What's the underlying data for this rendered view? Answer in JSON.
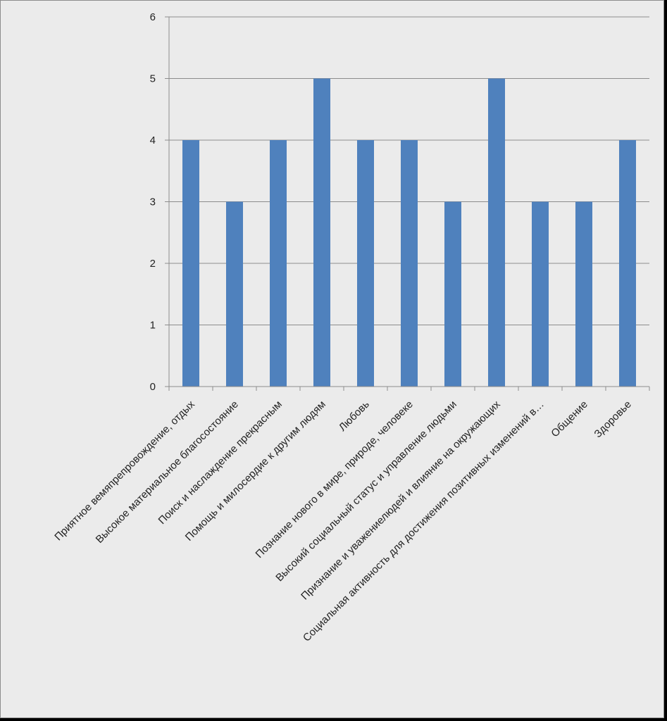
{
  "chart_data": {
    "type": "bar",
    "title": "",
    "xlabel": "",
    "ylabel": "",
    "ylim": [
      0,
      6
    ],
    "yticks": [
      "0",
      "1",
      "2",
      "3",
      "4",
      "5",
      "6"
    ],
    "grid": true,
    "legend": "none",
    "categories": [
      "Приятное вемяпрепровождение, отдых",
      "Высокое материальное благосостояние",
      "Поиск и наслаждение прекрасным",
      "Помощь и милосердие к другим людям",
      "Любовь",
      "Познание нового в мире, природе, человеке",
      "Высокий социальный статус и управление людьми",
      "Признание и уважениелюдей и влияние на окружающих",
      "Социальная активность для достижения позитивных изменений в…",
      "Общение",
      "Здоровье"
    ],
    "series": [
      {
        "values": [
          4,
          3,
          4,
          5,
          4,
          4,
          3,
          5,
          3,
          3,
          4
        ]
      }
    ],
    "colors": {
      "bar": "#4f81bd",
      "grid": "#8c8c8c",
      "background": "#ebebeb"
    }
  }
}
